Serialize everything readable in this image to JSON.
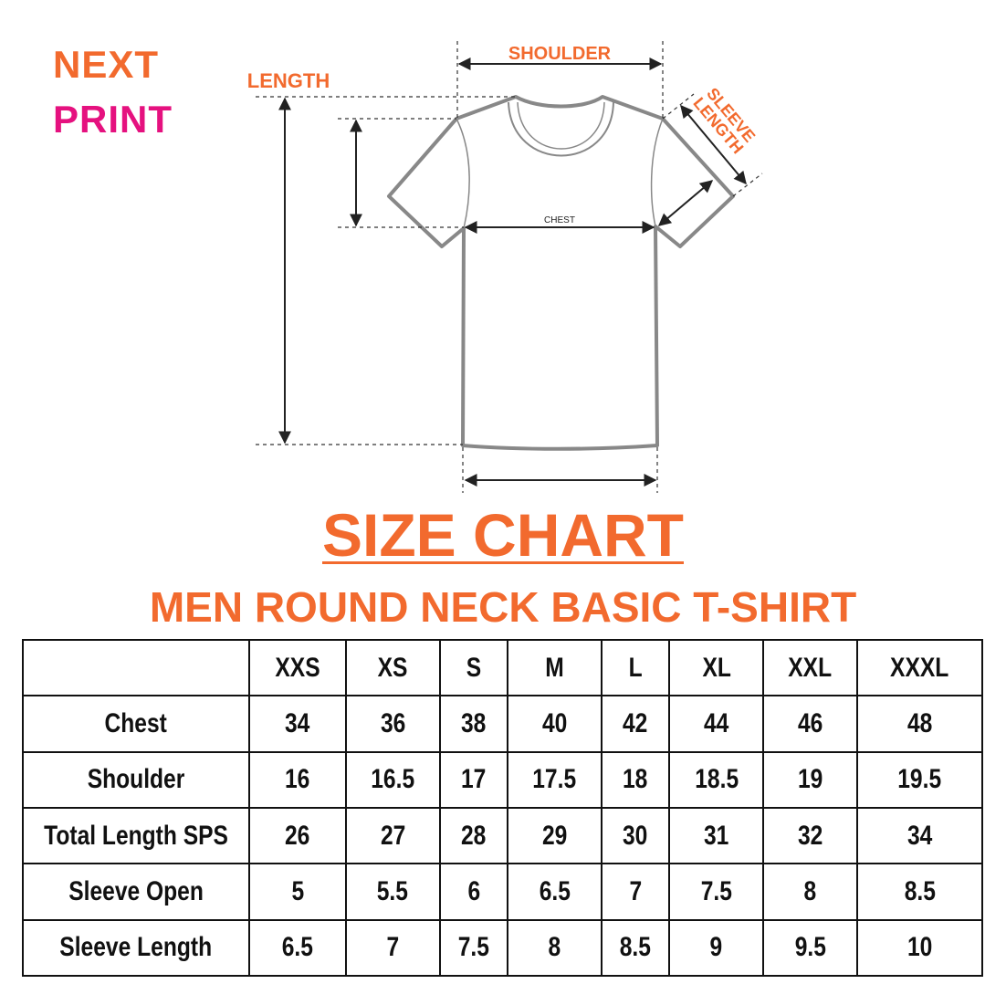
{
  "logo": {
    "line1": "NEXT",
    "line2": "PRINT"
  },
  "diagram": {
    "labels": {
      "shoulder": "SHOULDER",
      "length": "LENGTH",
      "sleeve_length": "SLEEVE LENGTH",
      "chest": "CHEST"
    }
  },
  "title": "SIZE CHART",
  "subtitle": "MEN ROUND NECK BASIC T-SHIRT",
  "colors": {
    "accent_orange": "#f26a2e",
    "accent_pink": "#e5117f"
  },
  "table": {
    "headers": [
      "",
      "XXS",
      "XS",
      "S",
      "M",
      "L",
      "XL",
      "XXL",
      "XXXL"
    ],
    "rows": [
      {
        "label": "Chest",
        "values": [
          "34",
          "36",
          "38",
          "40",
          "42",
          "44",
          "46",
          "48"
        ]
      },
      {
        "label": "Shoulder",
        "values": [
          "16",
          "16.5",
          "17",
          "17.5",
          "18",
          "18.5",
          "19",
          "19.5"
        ]
      },
      {
        "label": "Total Length SPS",
        "values": [
          "26",
          "27",
          "28",
          "29",
          "30",
          "31",
          "32",
          "34"
        ]
      },
      {
        "label": "Sleeve Open",
        "values": [
          "5",
          "5.5",
          "6",
          "6.5",
          "7",
          "7.5",
          "8",
          "8.5"
        ]
      },
      {
        "label": "Sleeve Length",
        "values": [
          "6.5",
          "7",
          "7.5",
          "8",
          "8.5",
          "9",
          "9.5",
          "10"
        ]
      }
    ]
  }
}
